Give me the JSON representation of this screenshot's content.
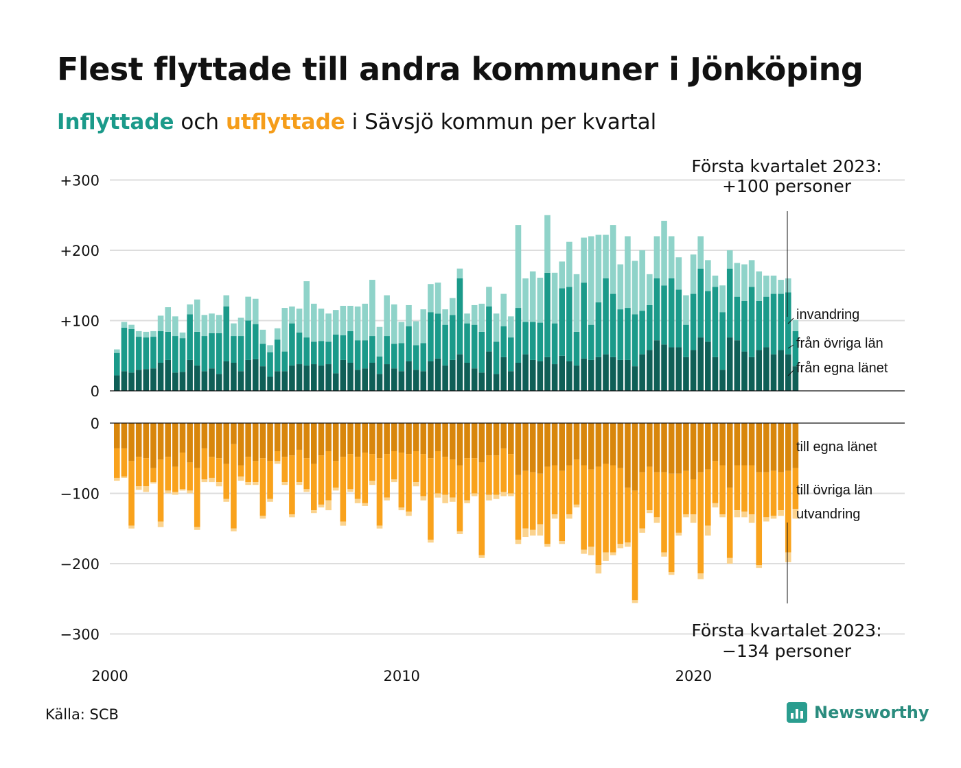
{
  "title": "Flest flyttade till andra kommuner i Jönköping",
  "subtitle": {
    "part1": "Inflyttade",
    "part2": " och ",
    "part3": "utflyttade",
    "part4": " i Sävsjö kommun per kvartal"
  },
  "source": "Källa: SCB",
  "brand": "Newsworthy",
  "colors": {
    "in_egna": "#0f5f57",
    "in_ovriga": "#1b9a8a",
    "in_invandring": "#8fd3c9",
    "ut_egna": "#d8860c",
    "ut_ovriga": "#f9a21c",
    "ut_utvandring": "#fbd38e",
    "grid": "#dddddd"
  },
  "annotations": {
    "top_line1": "Första kvartalet 2023:",
    "top_line2": "+100 personer",
    "bottom_line1": "Första kvartalet 2023:",
    "bottom_line2": "−134 personer"
  },
  "legend": {
    "invandring": "invandring",
    "fran_ovriga": "från övriga län",
    "fran_egna": "från egna länet",
    "till_egna": "till egna länet",
    "till_ovriga": "till övriga län",
    "utvandring": "utvandring"
  },
  "chart_data": {
    "type": "bar",
    "stacked": true,
    "x_start": {
      "year": 2000,
      "quarter": 1
    },
    "x_end": {
      "year": 2023,
      "quarter": 1
    },
    "x_ticks": [
      "2000",
      "2010",
      "2020"
    ],
    "y_ticks_top": [
      "+300",
      "+200",
      "+100",
      "0"
    ],
    "y_ticks_bottom": [
      "0",
      "−100",
      "−200",
      "−300"
    ],
    "ylim_top": [
      0,
      300
    ],
    "ylim_bottom": [
      -300,
      0
    ],
    "grid": true,
    "inflyttade": {
      "fran_egna_lanet": [
        22,
        28,
        26,
        30,
        31,
        32,
        40,
        44,
        26,
        27,
        44,
        36,
        28,
        32,
        24,
        42,
        40,
        28,
        44,
        45,
        35,
        20,
        28,
        28,
        36,
        38,
        36,
        38,
        36,
        38,
        25,
        44,
        40,
        30,
        32,
        40,
        24,
        38,
        32,
        28,
        42,
        30,
        28,
        42,
        46,
        36,
        44,
        52,
        40,
        32,
        26,
        56,
        24,
        48,
        28,
        40,
        52,
        44,
        42,
        48,
        38,
        50,
        42,
        36,
        46,
        44,
        48,
        52,
        48,
        44,
        44,
        35,
        52,
        58,
        72,
        66,
        62,
        62,
        48,
        58,
        76,
        70,
        48,
        30,
        76,
        72,
        56,
        48,
        58,
        62,
        52,
        58,
        52,
        35
      ],
      "fran_ovriga_lan": [
        32,
        62,
        62,
        47,
        45,
        45,
        45,
        40,
        52,
        48,
        65,
        48,
        50,
        50,
        58,
        78,
        38,
        50,
        56,
        50,
        32,
        35,
        45,
        28,
        60,
        45,
        40,
        32,
        35,
        32,
        55,
        35,
        45,
        42,
        40,
        38,
        25,
        40,
        35,
        40,
        50,
        35,
        40,
        70,
        64,
        58,
        64,
        108,
        56,
        62,
        58,
        64,
        46,
        44,
        48,
        78,
        46,
        54,
        55,
        120,
        58,
        96,
        106,
        48,
        108,
        50,
        78,
        108,
        90,
        72,
        74,
        74,
        62,
        64,
        88,
        84,
        98,
        82,
        46,
        80,
        98,
        72,
        100,
        82,
        98,
        62,
        72,
        100,
        70,
        72,
        86,
        80,
        88,
        50
      ],
      "invandring": [
        5,
        8,
        6,
        8,
        8,
        8,
        22,
        35,
        28,
        8,
        14,
        46,
        30,
        28,
        26,
        16,
        18,
        26,
        34,
        36,
        20,
        10,
        16,
        62,
        24,
        34,
        80,
        54,
        46,
        40,
        35,
        42,
        36,
        48,
        52,
        80,
        42,
        58,
        56,
        30,
        30,
        34,
        48,
        40,
        44,
        22,
        24,
        14,
        14,
        28,
        40,
        28,
        40,
        46,
        30,
        118,
        62,
        72,
        64,
        82,
        72,
        38,
        64,
        82,
        64,
        126,
        96,
        62,
        98,
        64,
        102,
        76,
        86,
        44,
        60,
        92,
        60,
        46,
        42,
        56,
        46,
        44,
        16,
        38,
        26,
        48,
        52,
        38,
        42,
        30,
        26,
        20,
        20,
        16
      ]
    },
    "utflyttade": {
      "till_egna_lanet": [
        36,
        36,
        54,
        48,
        50,
        64,
        52,
        48,
        62,
        42,
        56,
        64,
        36,
        48,
        50,
        58,
        30,
        60,
        48,
        54,
        50,
        54,
        40,
        48,
        46,
        38,
        50,
        58,
        46,
        40,
        54,
        48,
        44,
        48,
        42,
        44,
        50,
        44,
        40,
        42,
        44,
        40,
        44,
        50,
        40,
        48,
        52,
        60,
        50,
        50,
        56,
        46,
        46,
        36,
        44,
        74,
        68,
        70,
        72,
        62,
        60,
        68,
        60,
        52,
        60,
        66,
        62,
        58,
        60,
        64,
        92,
        96,
        70,
        62,
        70,
        70,
        72,
        72,
        68,
        80,
        70,
        66,
        54,
        60,
        92,
        60,
        60,
        60,
        70,
        70,
        68,
        70,
        68,
        64
      ],
      "till_ovriga_lan": [
        42,
        40,
        92,
        42,
        40,
        20,
        88,
        48,
        36,
        52,
        40,
        84,
        44,
        30,
        34,
        50,
        120,
        16,
        36,
        30,
        82,
        54,
        14,
        36,
        84,
        46,
        44,
        66,
        70,
        70,
        38,
        92,
        50,
        60,
        72,
        38,
        96,
        62,
        40,
        78,
        82,
        44,
        60,
        116,
        60,
        54,
        54,
        94,
        60,
        50,
        132,
        56,
        56,
        62,
        56,
        92,
        82,
        82,
        72,
        110,
        70,
        100,
        70,
        64,
        120,
        110,
        140,
        126,
        124,
        108,
        78,
        156,
        80,
        62,
        64,
        114,
        140,
        84,
        62,
        50,
        144,
        80,
        60,
        70,
        100,
        64,
        66,
        70,
        132,
        64,
        64,
        54,
        116,
        58
      ],
      "utvandring": [
        4,
        2,
        4,
        5,
        8,
        2,
        8,
        4,
        4,
        2,
        4,
        4,
        4,
        6,
        6,
        4,
        4,
        6,
        4,
        4,
        4,
        4,
        4,
        4,
        4,
        4,
        4,
        4,
        4,
        14,
        4,
        6,
        4,
        6,
        4,
        6,
        4,
        4,
        4,
        4,
        6,
        6,
        6,
        4,
        6,
        12,
        6,
        4,
        4,
        4,
        4,
        8,
        6,
        6,
        4,
        6,
        12,
        8,
        16,
        4,
        6,
        4,
        6,
        4,
        6,
        12,
        12,
        12,
        4,
        6,
        6,
        4,
        6,
        4,
        8,
        6,
        4,
        4,
        4,
        12,
        8,
        14,
        6,
        4,
        8,
        10,
        8,
        12,
        4,
        6,
        4,
        8,
        14,
        14
      ]
    }
  }
}
